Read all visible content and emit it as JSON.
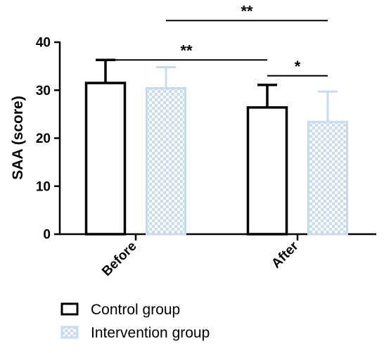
{
  "chart_data": {
    "type": "bar",
    "categories": [
      "Before",
      "After"
    ],
    "ylabel": "SAA (score)",
    "ylim": [
      0,
      40
    ],
    "yticks": [
      0,
      10,
      20,
      30,
      40
    ],
    "grid": false,
    "legend_position": "bottom-left",
    "series": [
      {
        "name": "Control group",
        "values": [
          31.5,
          26.4
        ],
        "errors": [
          4.8,
          4.7
        ],
        "style": "open",
        "color": "#000000"
      },
      {
        "name": "Intervention group",
        "values": [
          30.4,
          23.4
        ],
        "errors": [
          4.4,
          6.3
        ],
        "style": "checkered",
        "color": "#c6dcf2"
      }
    ],
    "annotations": [
      {
        "label": "**",
        "from": {
          "category": "Before",
          "series": "Control group"
        },
        "to": {
          "category": "After",
          "series": "Control group"
        },
        "y": 36.3
      },
      {
        "label": "**",
        "from": {
          "category": "Before",
          "series": "Intervention group"
        },
        "to": {
          "category": "After",
          "series": "Intervention group"
        },
        "y": 44.5
      },
      {
        "label": "*",
        "from": {
          "category": "After",
          "series": "Control group"
        },
        "to": {
          "category": "After",
          "series": "Intervention group"
        },
        "y": 33.0
      }
    ]
  }
}
